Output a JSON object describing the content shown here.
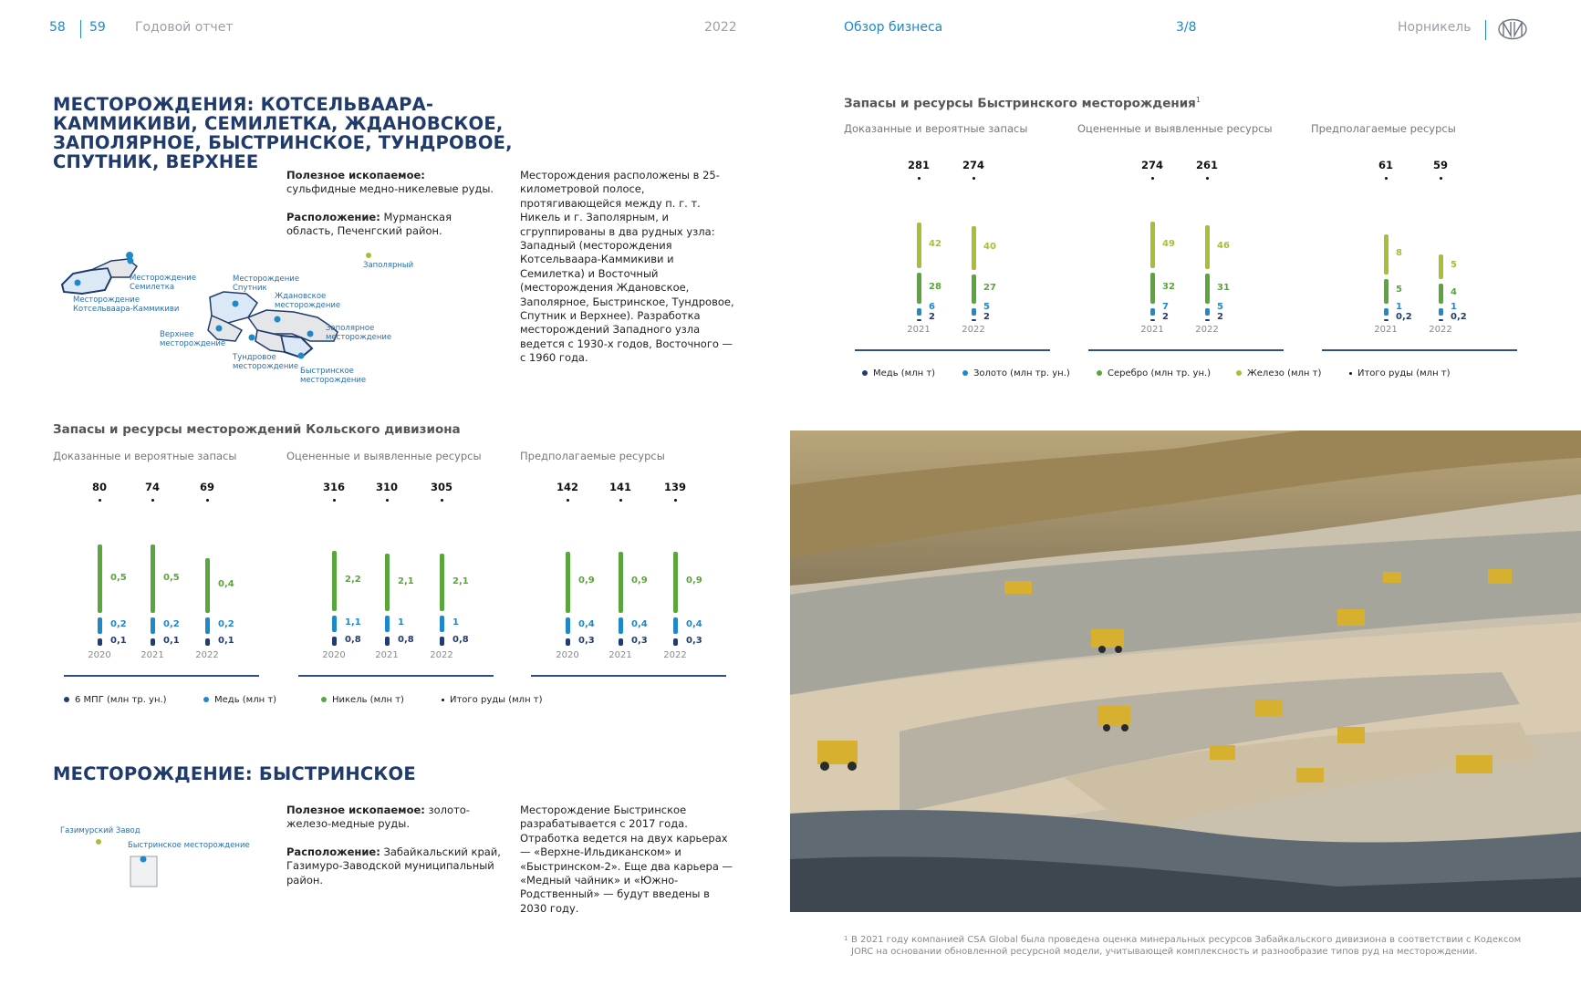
{
  "header": {
    "page_left": "58",
    "page_right": "59",
    "report": "Годовой отчет",
    "year": "2022",
    "section": "Обзор бизнеса",
    "section_page": "3/8",
    "brand": "Норникель"
  },
  "kola": {
    "title": "МЕСТОРОЖДЕНИЯ: КОТСЕЛЬВААРА-КАММИКИВИ, СЕМИЛЕТКА, ЖДАНОВСКОЕ, ЗАПОЛЯРНОЕ, БЫСТРИНСКОЕ, ТУНДРОВОЕ, СПУТНИК, ВЕРХНЕЕ",
    "mineral_label": "Полезное ископаемое:",
    "mineral_value": "сульфидные медно-никелевые руды.",
    "location_label": "Расположение:",
    "location_value": "Мурманская область, Печенгский район.",
    "description": "Месторождения расположены в 25-километровой полосе, протягивающейся между п. г. т. Никель и г. Заполярным, и сгруппированы в два рудных узла: Западный (месторождения Котсельваара-Каммикиви и Семилетка) и Восточный (месторождения Ждановское, Заполярное, Быстринское, Тундровое, Спутник и Верхнее). Разработка месторождений Западного узла ведется с 1930-х годов, Восточного — с 1960 года.",
    "map_labels": {
      "zapolyarny": "Заполярный",
      "semiletka": "Месторождение\nСемилетка",
      "kotselvaara": "Месторождение\nКотсельваара-Каммикиви",
      "sputnik": "Месторождение\nСпутник",
      "zhdanovskoe": "Ждановское\nместорождение",
      "verkhnee": "Верхнее\nместорождение",
      "zapolyarnoe": "Заполярное\nместорождение",
      "tundrovoe": "Тундровое\nместорождение",
      "bystrinskoe_k": "Быстринское\nместорождение"
    }
  },
  "kola_chart": {
    "title": "Запасы и ресурсы месторождений Кольского дивизиона",
    "legend": [
      "6 МПГ (млн тр. ун.)",
      "Медь (млн т)",
      "Никель (млн т)",
      "Итого руды (млн т)"
    ]
  },
  "bystrinskoe": {
    "title": "МЕСТОРОЖДЕНИЕ: БЫСТРИНСКОЕ",
    "mineral_label": "Полезное ископаемое:",
    "mineral_value": "золото-железо-медные руды.",
    "location_label": "Расположение:",
    "location_value": "Забайкальский край, Газимуро-Заводской муниципальный район.",
    "description": "Месторождение Быстринское разрабатывается с 2017 года. Отработка ведется на двух карьерах — «Верхне-Ильдиканском» и «Быстринском-2». Еще два карьера — «Медный чайник» и «Южно-Родственный» — будут введены в 2030 году.",
    "map_label_plant": "Газимурский Завод",
    "map_label_deposit": "Быстринское месторождение"
  },
  "byst_chart": {
    "title": "Запасы и ресурсы Быстринского месторождения",
    "title_sup": "1",
    "legend": [
      "Медь (млн т)",
      "Золото (млн тр. ун.)",
      "Серебро (млн тр. ун.)",
      "Железо (млн т)",
      "Итого руды (млн т)"
    ]
  },
  "photo": {
    "alt_icon": "open-pit-mine-photo"
  },
  "footnote": {
    "marker": "1",
    "text": "В 2021 году компанией CSA Global была проведена оценка минеральных ресурсов Забайкальского дивизиона в соответствии с Кодексом JORC на основании обновленной ресурсной модели, учитывающей комплексность и разнообразие типов руд на месторождении."
  },
  "colors": {
    "navy": "#233c70",
    "blue": "#1e88c8",
    "green": "#5aa53c",
    "olive": "#a9bd3a",
    "title": "#1f3a6b"
  },
  "chart_data": [
    {
      "type": "bar",
      "title": "Запасы и ресурсы месторождений Кольского дивизиона",
      "groups": [
        {
          "name": "Доказанные и вероятные запасы",
          "categories": [
            "2020",
            "2021",
            "2022"
          ],
          "totals": [
            80,
            74,
            69
          ],
          "series": [
            {
              "name": "6 МПГ (млн тр. ун.)",
              "values": [
                0.1,
                0.1,
                0.1
              ]
            },
            {
              "name": "Медь (млн т)",
              "values": [
                0.2,
                0.2,
                0.2
              ]
            },
            {
              "name": "Никель (млн т)",
              "values": [
                0.5,
                0.5,
                0.4
              ]
            }
          ]
        },
        {
          "name": "Оцененные и выявленные ресурсы",
          "categories": [
            "2020",
            "2021",
            "2022"
          ],
          "totals": [
            316,
            310,
            305
          ],
          "series": [
            {
              "name": "6 МПГ (млн тр. ун.)",
              "values": [
                0.8,
                0.8,
                0.8
              ]
            },
            {
              "name": "Медь (млн т)",
              "values": [
                1.1,
                1,
                1
              ]
            },
            {
              "name": "Никель (млн т)",
              "values": [
                2.2,
                2.1,
                2.1
              ]
            }
          ]
        },
        {
          "name": "Предполагаемые ресурсы",
          "categories": [
            "2020",
            "2021",
            "2022"
          ],
          "totals": [
            142,
            141,
            139
          ],
          "series": [
            {
              "name": "6 МПГ (млн тр. ун.)",
              "values": [
                0.3,
                0.3,
                0.3
              ]
            },
            {
              "name": "Медь (млн т)",
              "values": [
                0.4,
                0.4,
                0.4
              ]
            },
            {
              "name": "Никель (млн т)",
              "values": [
                0.9,
                0.9,
                0.9
              ]
            }
          ]
        }
      ]
    },
    {
      "type": "bar",
      "title": "Запасы и ресурсы Быстринского месторождения",
      "groups": [
        {
          "name": "Доказанные и вероятные запасы",
          "categories": [
            "2021",
            "2022"
          ],
          "totals": [
            281,
            274
          ],
          "series": [
            {
              "name": "Медь (млн т)",
              "values": [
                2,
                2
              ]
            },
            {
              "name": "Золото (млн тр. ун.)",
              "values": [
                6,
                5
              ]
            },
            {
              "name": "Серебро (млн тр. ун.)",
              "values": [
                28,
                27
              ]
            },
            {
              "name": "Железо (млн т)",
              "values": [
                42,
                40
              ]
            }
          ]
        },
        {
          "name": "Оцененные и выявленные ресурсы",
          "categories": [
            "2021",
            "2022"
          ],
          "totals": [
            274,
            261
          ],
          "series": [
            {
              "name": "Медь (млн т)",
              "values": [
                2,
                2
              ]
            },
            {
              "name": "Золото (млн тр. ун.)",
              "values": [
                7,
                5
              ]
            },
            {
              "name": "Серебро (млн тр. ун.)",
              "values": [
                32,
                31
              ]
            },
            {
              "name": "Железо (млн т)",
              "values": [
                49,
                46
              ]
            }
          ]
        },
        {
          "name": "Предполагаемые ресурсы",
          "categories": [
            "2021",
            "2022"
          ],
          "totals": [
            61,
            59
          ],
          "series": [
            {
              "name": "Медь (млн т)",
              "values": [
                0.2,
                0.2
              ]
            },
            {
              "name": "Золото (млн тр. ун.)",
              "values": [
                1,
                1
              ]
            },
            {
              "name": "Серебро (млн тр. ун.)",
              "values": [
                5,
                4
              ]
            },
            {
              "name": "Железо (млн т)",
              "values": [
                8,
                5
              ]
            }
          ]
        }
      ]
    }
  ]
}
